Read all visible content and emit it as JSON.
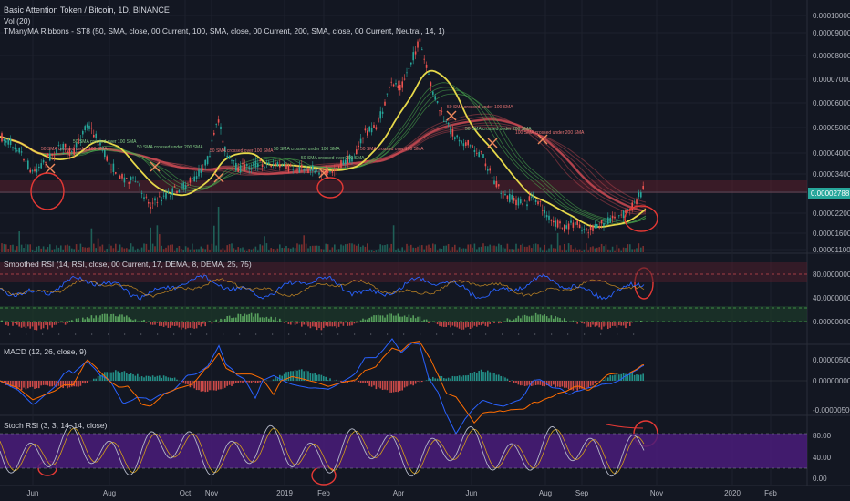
{
  "header": {
    "title": "Basic Attention Token / Bitcoin, 1D, BINANCE",
    "vol": "Vol (20)",
    "ribbons": "TManyMA Ribbons - ST8 (50, SMA, close, 00 Current, 100, SMA, close, 00 Current, 200, SMA, close, 00 Current, Neutral, 14, 1)"
  },
  "panes": {
    "rsi_title": "Smoothed RSI (14, RSI, close, 00 Current, 17, DEMA, 8, DEMA, 25, 75)",
    "macd_title": "MACD (12, 26, close, 9)",
    "stoch_title": "Stoch RSI (3, 3, 14, 14, close)"
  },
  "last_price": "0.00002788",
  "price_axis": [
    "0.00010000",
    "0.00009000",
    "0.00008000",
    "0.00007000",
    "0.00006000",
    "0.00005000",
    "0.00004000",
    "0.00003400",
    "0.00002200",
    "0.00001600",
    "0.00001100"
  ],
  "rsi_axis": [
    "80.00000000",
    "40.00000000",
    "0.00000000"
  ],
  "macd_axis": [
    "0.00000500",
    "0.00000000",
    "-0.00000500"
  ],
  "stoch_axis": [
    "80.00",
    "40.00",
    "0.00"
  ],
  "time_axis": [
    "Jun",
    "Aug",
    "Oct",
    "Nov",
    "2019",
    "Feb",
    "Apr",
    "Jun",
    "Aug",
    "Sep",
    "Nov",
    "2020",
    "Feb"
  ],
  "cross_labels": [
    "50 SMA crossed over 100 SMA",
    "50 SMA crossed under 100 SMA",
    "50 SMA crossed under 200 SMA",
    "50 SMA crossed over 100 SMA",
    "50 SMA crossed under 100 SMA",
    "50 SMA crossed over 100 SMA",
    "50 SMA crossed over 200 SMA",
    "50 SMA crossed under 100 SMA",
    "50 SMA crossed under 200 SMA",
    "100 SMA crossed under 200 SMA"
  ],
  "colors": {
    "background": "#131722",
    "up": "#26a69a",
    "down": "#ef5350",
    "sma50": "#e6d84a",
    "sma100": "#4caf50",
    "sma200": "#c94a52",
    "rsi_band": "#3a1f2a",
    "stoch_band": "#4a1c7a",
    "last_price_bg": "#26a69a",
    "annotation": "#e53935"
  },
  "chart_data": {
    "type": "candlestick",
    "title": "Basic Attention Token / Bitcoin, 1D, BINANCE",
    "price_trend": [
      {
        "month": "May 2018",
        "close": 4.8e-05
      },
      {
        "month": "Jun 2018",
        "close": 4e-05
      },
      {
        "month": "Jul 2018",
        "close": 4.4e-05
      },
      {
        "month": "Aug 2018",
        "close": 3e-05
      },
      {
        "month": "Sep 2018",
        "close": 2.7e-05
      },
      {
        "month": "Oct 2018",
        "close": 3.3e-05
      },
      {
        "month": "Nov 2018",
        "close": 4.2e-05
      },
      {
        "month": "Dec 2018",
        "close": 3.7e-05
      },
      {
        "month": "Jan 2019",
        "close": 3.5e-05
      },
      {
        "month": "Feb 2019",
        "close": 3.3e-05
      },
      {
        "month": "Mar 2019",
        "close": 5.6e-05
      },
      {
        "month": "Apr 2019",
        "close": 8.4e-05
      },
      {
        "month": "May 2019",
        "close": 6e-05
      },
      {
        "month": "Jun 2019",
        "close": 4.2e-05
      },
      {
        "month": "Jul 2019",
        "close": 2.4e-05
      },
      {
        "month": "Aug 2019",
        "close": 1.9e-05
      },
      {
        "month": "Sep 2019",
        "close": 1.8e-05
      },
      {
        "month": "Oct 2019",
        "close": 2.79e-05
      }
    ]
  }
}
